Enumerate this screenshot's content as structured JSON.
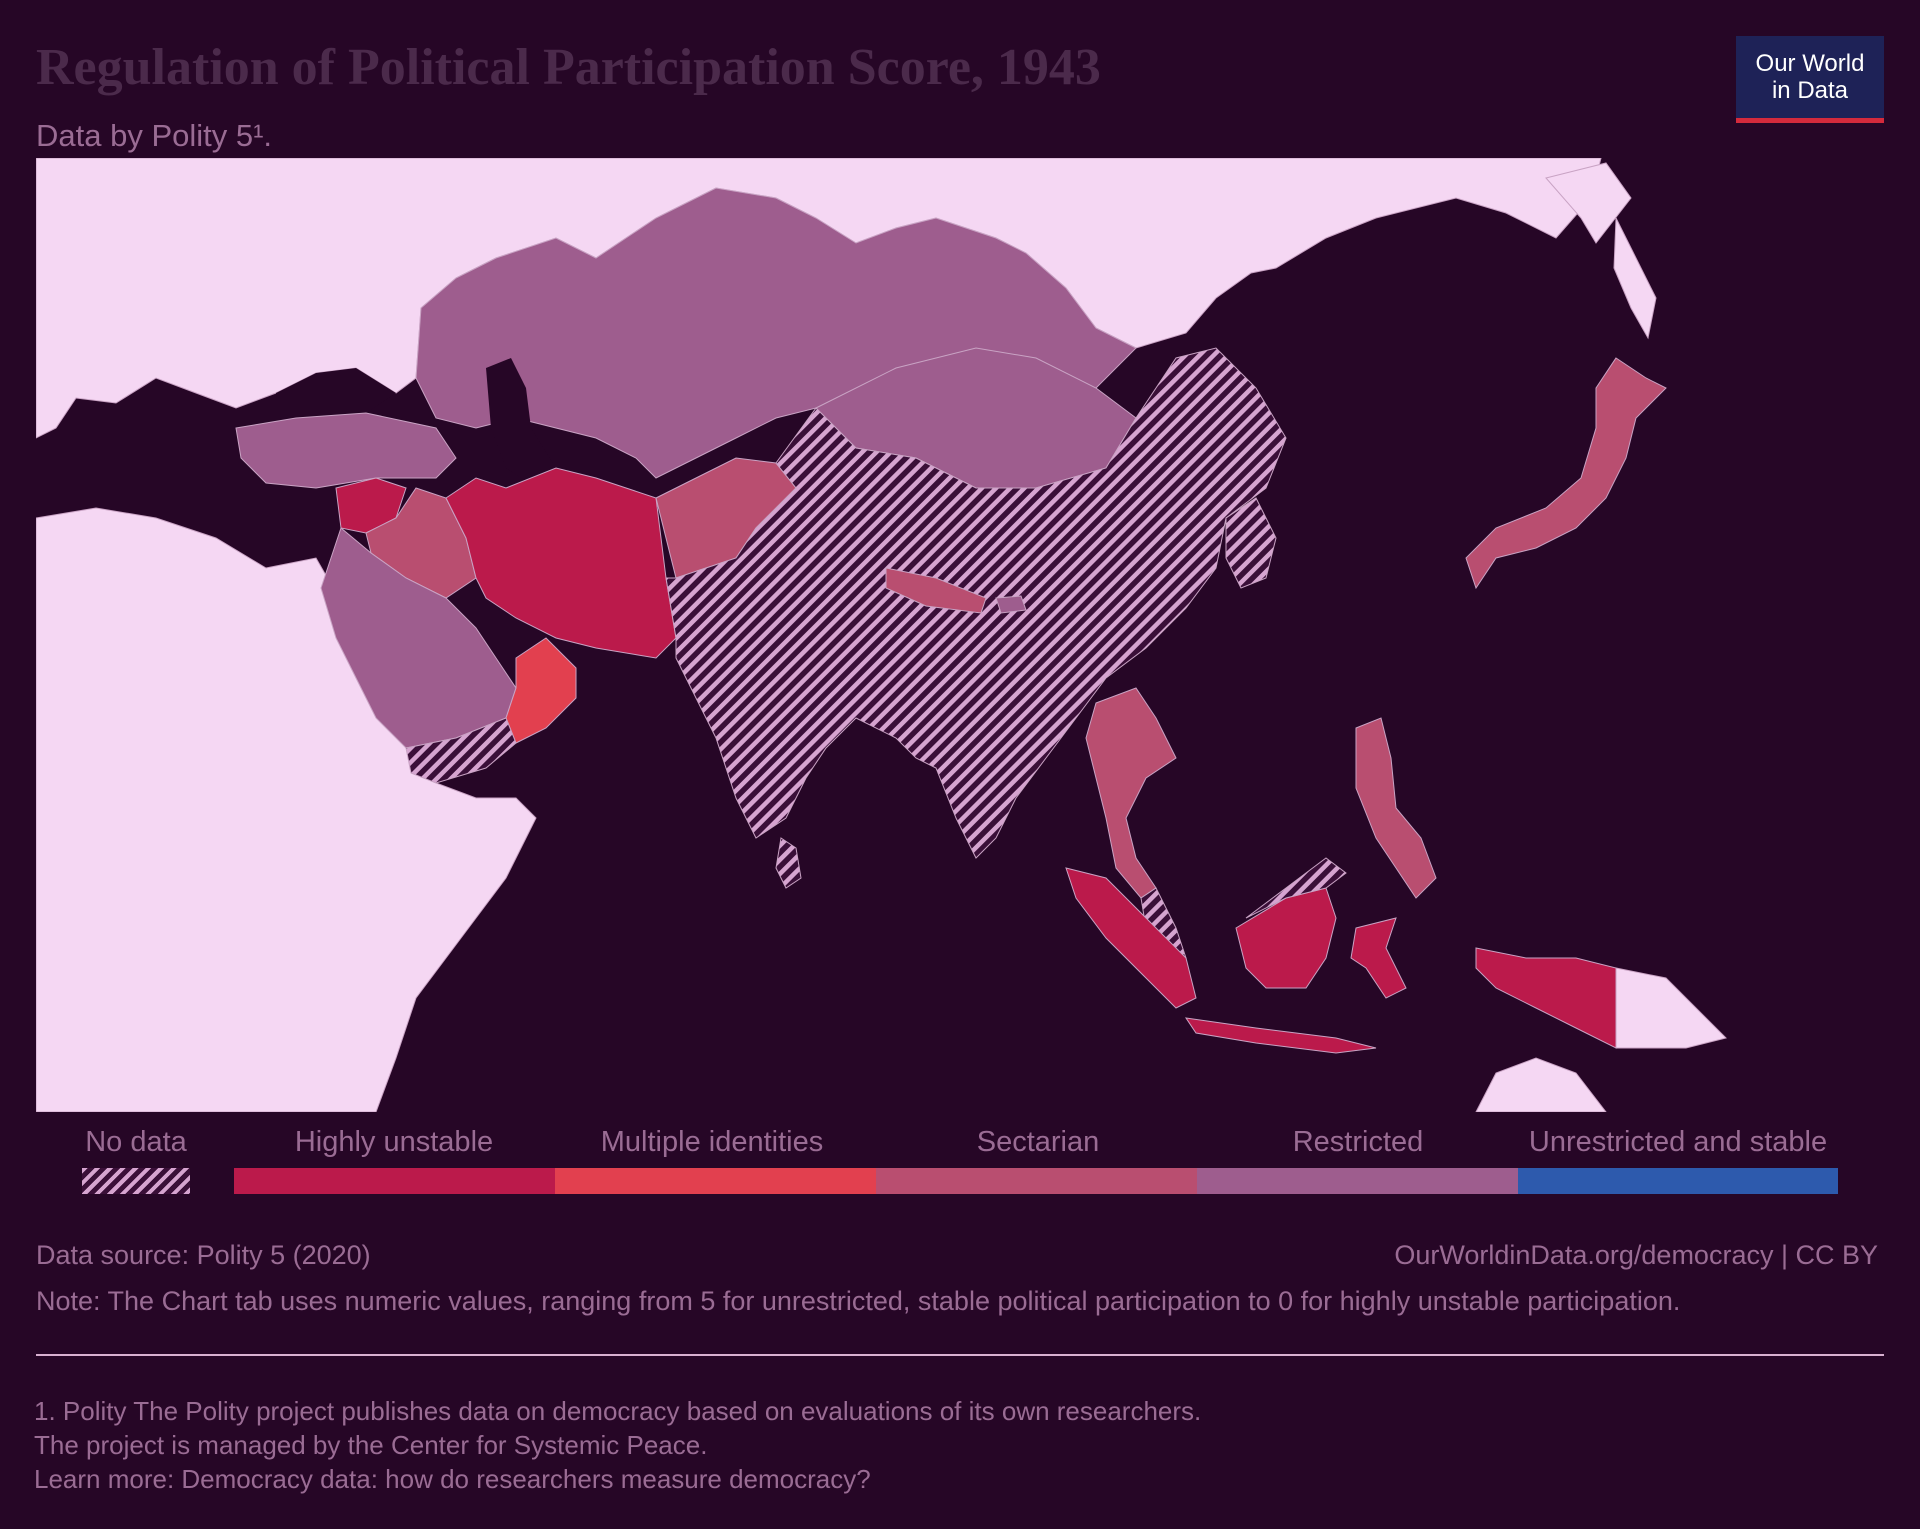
{
  "header": {
    "title": "Regulation of Political Participation Score, 1943",
    "subtitle": "Data by Polity 5¹."
  },
  "logo": {
    "line1": "Our World",
    "line2": "in Data"
  },
  "colors": {
    "background": "#260626",
    "no_data_land": "#f5d7f3",
    "highly_unstable": "#bb1a4b",
    "multiple_identities": "#e2404f",
    "sectarian": "#b94e70",
    "restricted": "#9e5d8e",
    "unrestricted_and_stable": "#2d5aad",
    "hatch": "#d6a4d0"
  },
  "chart_data": {
    "type": "choropleth",
    "title": "Regulation of Political Participation Score, 1943",
    "year": 1943,
    "scale": [
      "Highly unstable",
      "Multiple identities",
      "Sectarian",
      "Restricted",
      "Unrestricted and stable"
    ],
    "scale_values": [
      0,
      1,
      2,
      3,
      4,
      5
    ],
    "no_data_label": "No data",
    "regions": [
      {
        "name": "Iran",
        "category": "Highly unstable"
      },
      {
        "name": "Syria",
        "category": "Highly unstable"
      },
      {
        "name": "Indonesia",
        "category": "Highly unstable"
      },
      {
        "name": "Oman",
        "category": "Multiple identities"
      },
      {
        "name": "Iraq",
        "category": "Sectarian"
      },
      {
        "name": "Afghanistan",
        "category": "Sectarian"
      },
      {
        "name": "Nepal",
        "category": "Sectarian"
      },
      {
        "name": "Thailand",
        "category": "Sectarian"
      },
      {
        "name": "Philippines",
        "category": "Sectarian"
      },
      {
        "name": "Japan",
        "category": "Sectarian"
      },
      {
        "name": "Turkey",
        "category": "Restricted"
      },
      {
        "name": "Soviet Union",
        "category": "Restricted"
      },
      {
        "name": "Mongolia",
        "category": "Restricted"
      },
      {
        "name": "Saudi Arabia",
        "category": "Restricted"
      },
      {
        "name": "Bhutan",
        "category": "Restricted"
      },
      {
        "name": "China",
        "category": "No data"
      },
      {
        "name": "India",
        "category": "No data"
      },
      {
        "name": "Korea",
        "category": "No data"
      },
      {
        "name": "Indochina",
        "category": "No data"
      },
      {
        "name": "Yemen",
        "category": "No data"
      },
      {
        "name": "Sri Lanka",
        "category": "No data"
      },
      {
        "name": "Malaya",
        "category": "No data"
      }
    ]
  },
  "legend": {
    "no_data": "No data",
    "items": [
      {
        "label": "Highly unstable",
        "color": "#bb1a4b"
      },
      {
        "label": "Multiple identities",
        "color": "#e2404f"
      },
      {
        "label": "Sectarian",
        "color": "#b94e70"
      },
      {
        "label": "Restricted",
        "color": "#9e5d8e"
      },
      {
        "label": "Unrestricted and stable",
        "color": "#2d5aad"
      }
    ]
  },
  "footer": {
    "source": "Data source: Polity 5 (2020)",
    "credit": "OurWorldinData.org/democracy | CC BY",
    "note": "Note: The Chart tab uses numeric values, ranging from 5 for unrestricted, stable political participation to 0 for highly unstable participation.",
    "footnote1": "1. Polity The Polity project publishes data on democracy based on evaluations of its own researchers.",
    "footnote2": "The project is managed by the Center for Systemic Peace.",
    "footnote3": "Learn more: Democracy data: how do researchers measure democracy?"
  }
}
